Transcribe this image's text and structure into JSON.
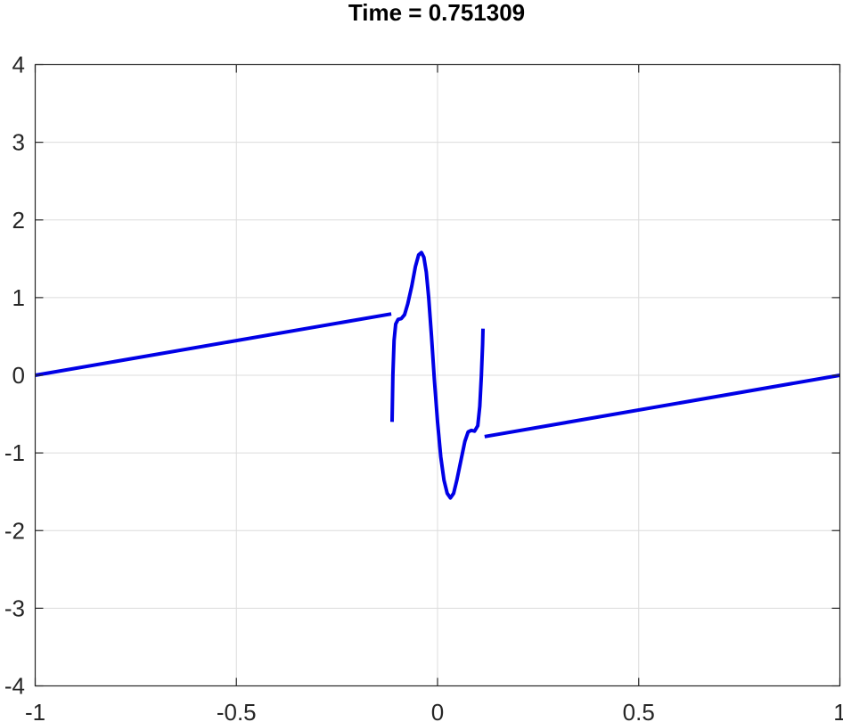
{
  "chart_data": {
    "type": "line",
    "title": "Time = 0.751309",
    "xlabel": "",
    "ylabel": "",
    "xlim": [
      -1,
      1
    ],
    "ylim": [
      -4,
      4
    ],
    "xticks": [
      -1,
      -0.5,
      0,
      0.5,
      1
    ],
    "xtick_labels": [
      "-1",
      "-0.5",
      "0",
      "0.5",
      "1"
    ],
    "yticks": [
      -4,
      -3,
      -2,
      -1,
      0,
      1,
      2,
      3,
      4
    ],
    "ytick_labels": [
      "-4",
      "-3",
      "-2",
      "-1",
      "0",
      "1",
      "2",
      "3",
      "4"
    ],
    "grid": true,
    "colors": {
      "series": "#0000e6",
      "axis": "#262626",
      "grid": "#dcdcdc"
    },
    "series": [
      {
        "segments": [
          [
            [
              -1.0,
              0.0
            ],
            [
              -0.115,
              0.79
            ]
          ],
          [
            [
              -0.113,
              -0.6
            ],
            [
              -0.111,
              0.0
            ],
            [
              -0.108,
              0.45
            ],
            [
              -0.104,
              0.66
            ],
            [
              -0.098,
              0.72
            ],
            [
              -0.09,
              0.73
            ],
            [
              -0.082,
              0.78
            ],
            [
              -0.074,
              0.92
            ],
            [
              -0.064,
              1.15
            ],
            [
              -0.055,
              1.4
            ],
            [
              -0.047,
              1.55
            ],
            [
              -0.04,
              1.58
            ],
            [
              -0.034,
              1.52
            ],
            [
              -0.028,
              1.33
            ],
            [
              -0.022,
              1.0
            ],
            [
              -0.015,
              0.5
            ],
            [
              -0.008,
              -0.05
            ],
            [
              0.0,
              -0.6
            ],
            [
              0.008,
              -1.05
            ],
            [
              0.016,
              -1.35
            ],
            [
              0.024,
              -1.52
            ],
            [
              0.032,
              -1.58
            ],
            [
              0.04,
              -1.52
            ],
            [
              0.048,
              -1.35
            ],
            [
              0.058,
              -1.1
            ],
            [
              0.068,
              -0.85
            ],
            [
              0.076,
              -0.73
            ],
            [
              0.084,
              -0.71
            ],
            [
              0.092,
              -0.72
            ],
            [
              0.1,
              -0.65
            ],
            [
              0.105,
              -0.4
            ],
            [
              0.109,
              0.0
            ],
            [
              0.112,
              0.4
            ],
            [
              0.113,
              0.6
            ]
          ],
          [
            [
              0.117,
              -0.79
            ],
            [
              1.0,
              0.0
            ]
          ]
        ]
      }
    ]
  }
}
